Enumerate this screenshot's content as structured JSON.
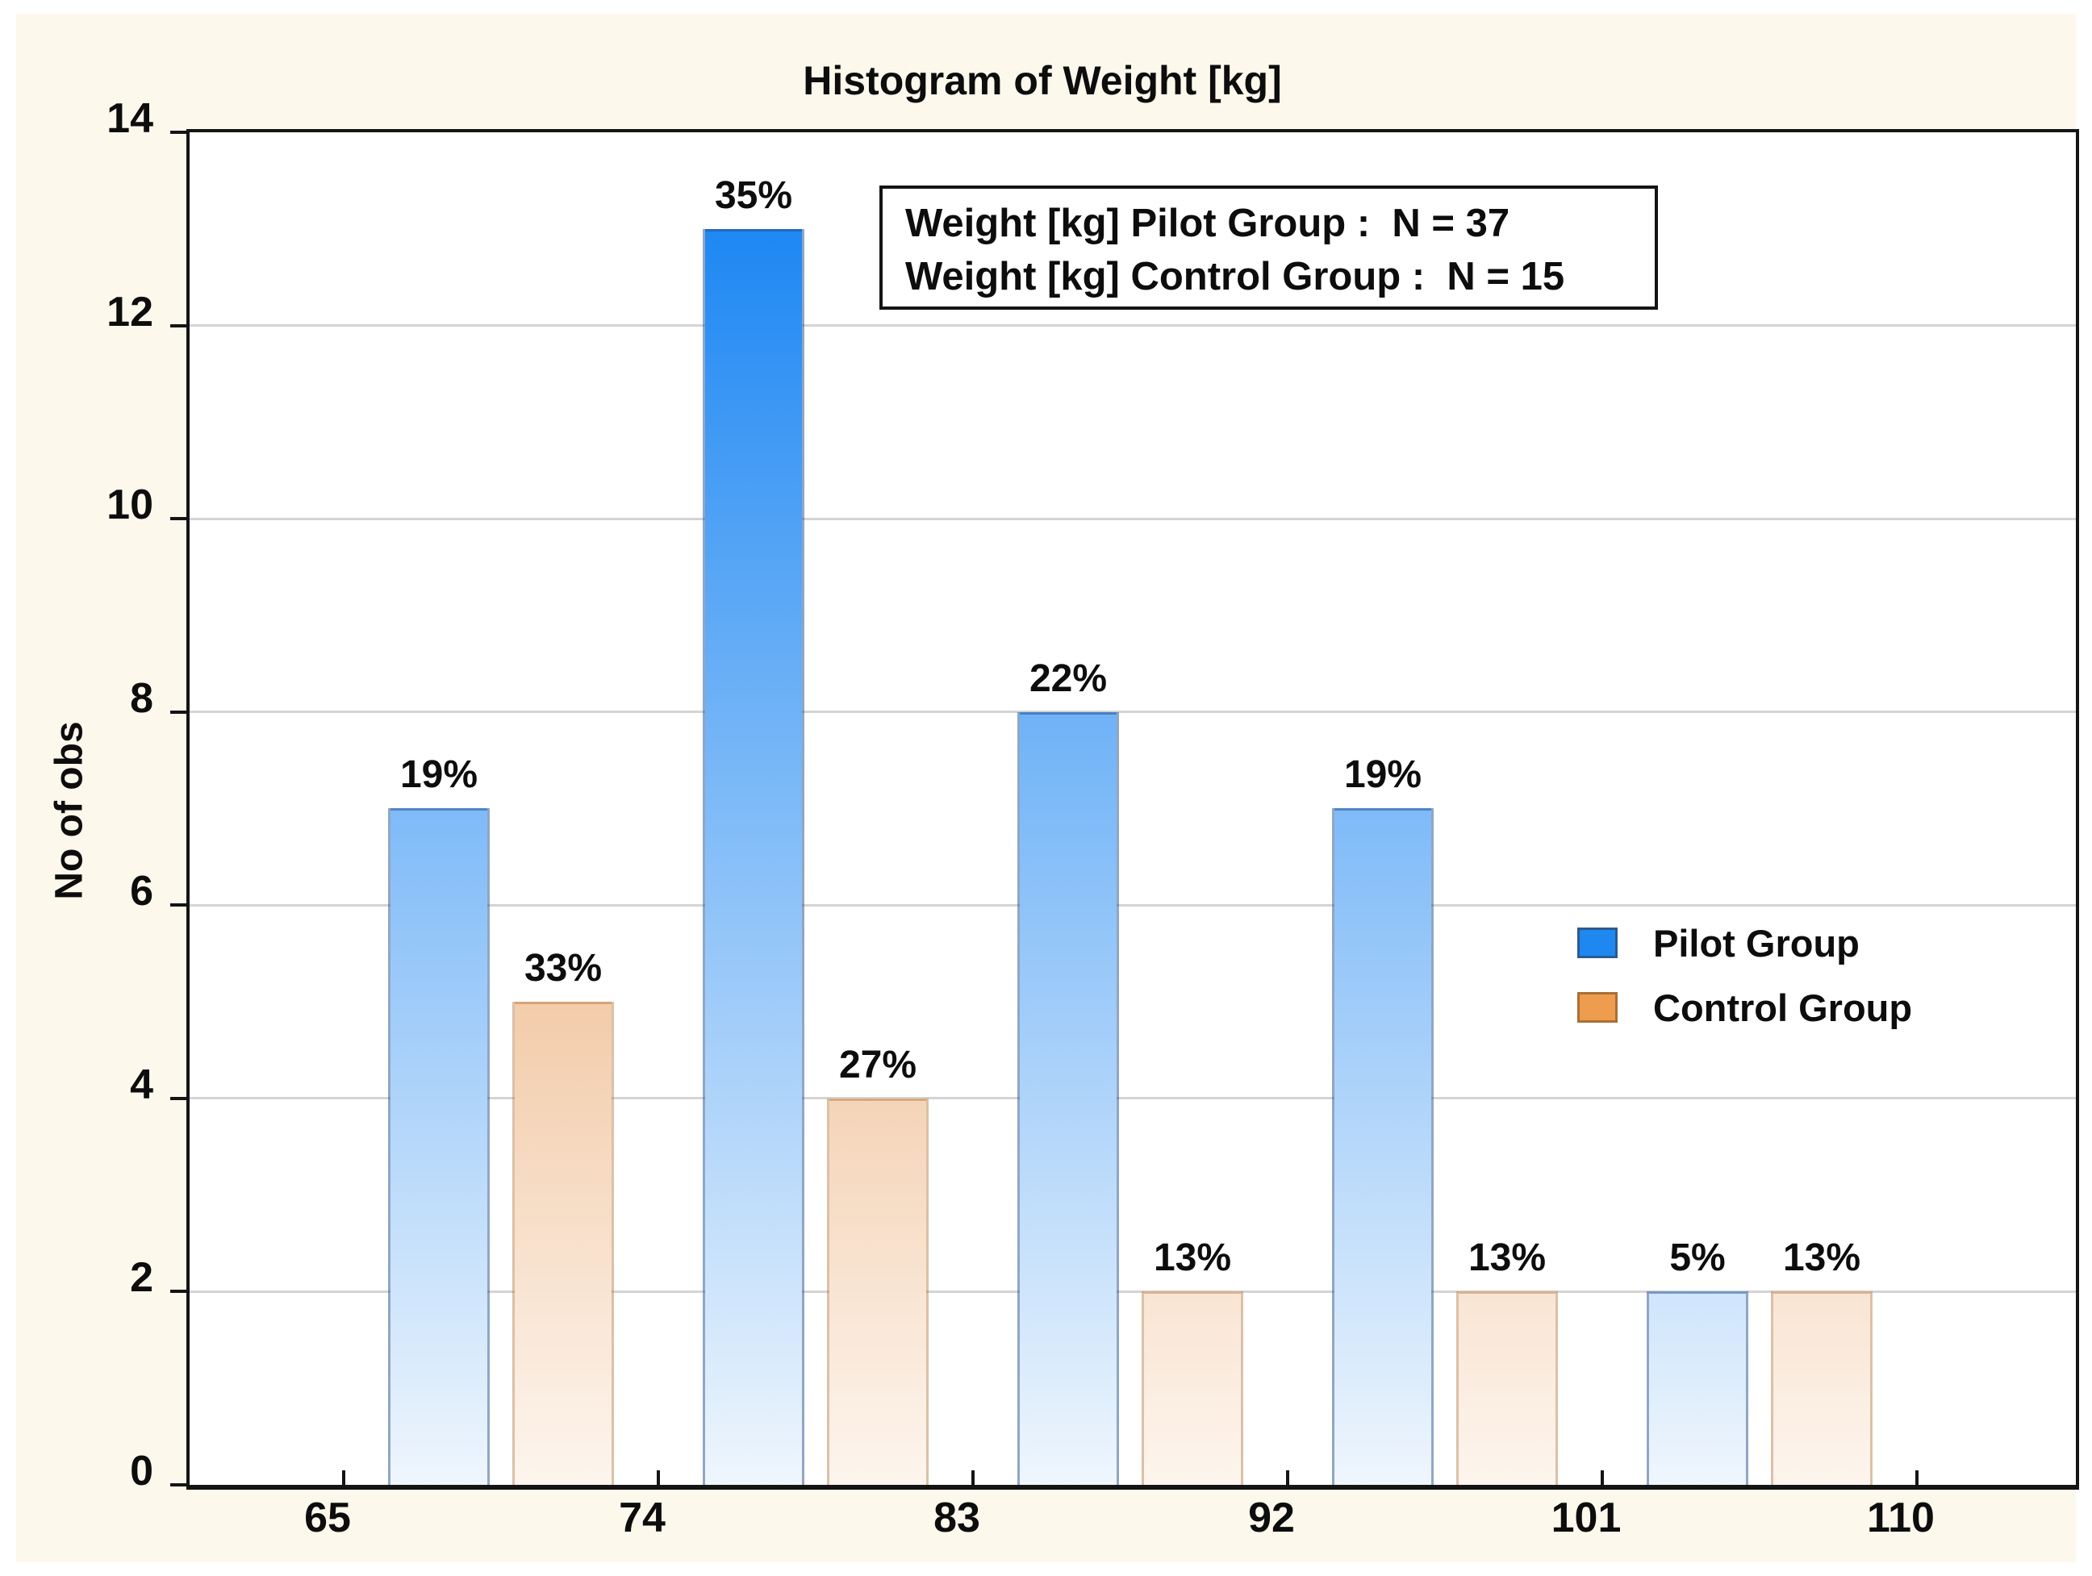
{
  "title": "Histogram of Weight [kg]",
  "y_axis_title": "No of obs",
  "info_box": {
    "line1": "Weight [kg] Pilot Group :  N = 37",
    "line2": "Weight [kg] Control Group :  N = 15"
  },
  "legend": {
    "pilot_label": "Pilot Group",
    "control_label": "Control Group"
  },
  "colors": {
    "canvas_background": "#FDF8EC",
    "plot_background": "#FFFFFF",
    "axis": "#141414",
    "grid": "#D4D4D4",
    "pilot_gradient_top": "#0E7FF2",
    "pilot_gradient_bottom": "#EFF6FD",
    "control_gradient_top": "#E08230",
    "control_gradient_bottom": "#FDF5EE",
    "pilot_solid": "#1E88F0",
    "pilot_swatch_border": "#2C5A8F",
    "control_solid": "#EE9C4E",
    "control_swatch_border": "#A96F33"
  },
  "chart_data": {
    "type": "bar",
    "title": "Histogram of Weight [kg]",
    "xlabel": "",
    "ylabel": "No of obs",
    "ylim": [
      0,
      14
    ],
    "y_ticks": [
      0,
      2,
      4,
      6,
      8,
      10,
      12,
      14
    ],
    "x_ticks": [
      65,
      74,
      83,
      92,
      101,
      110
    ],
    "bin_width_kg": 9,
    "bins": [
      "65-74",
      "74-83",
      "83-92",
      "92-101",
      "101-110"
    ],
    "grid": "horizontal",
    "legend_position": "middle-right",
    "series": [
      {
        "name": "Pilot Group",
        "n": 37,
        "color": "#1E88F0",
        "values": [
          7,
          13,
          8,
          7,
          2
        ],
        "pct_labels": [
          "19%",
          "35%",
          "22%",
          "19%",
          "5%"
        ]
      },
      {
        "name": "Control Group",
        "n": 15,
        "color": "#EE9C4E",
        "values": [
          5,
          4,
          2,
          2,
          2
        ],
        "pct_labels": [
          "33%",
          "27%",
          "13%",
          "13%",
          "13%"
        ]
      }
    ]
  }
}
